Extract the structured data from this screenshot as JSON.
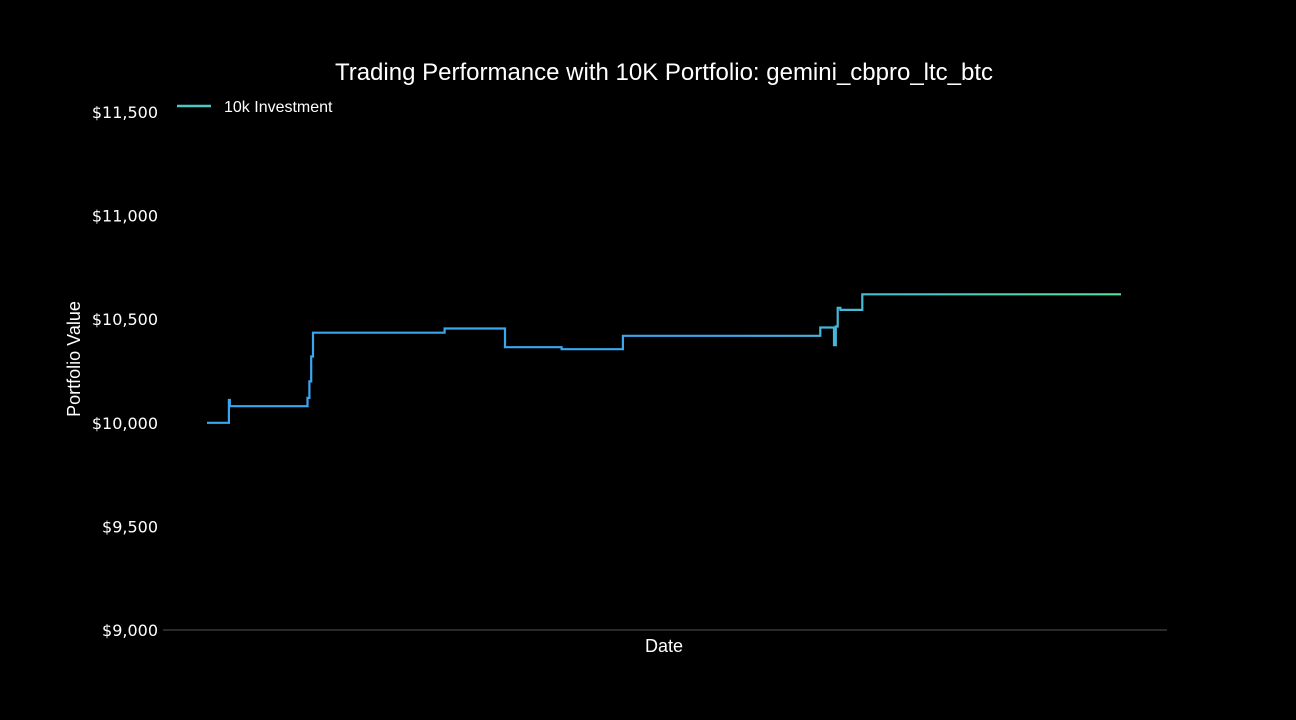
{
  "chart_data": {
    "type": "line",
    "title": "Trading Performance with 10K Portfolio: gemini_cbpro_ltc_btc",
    "xlabel": "Date",
    "ylabel": "Portfolio Value",
    "ylim": [
      9000,
      11600
    ],
    "yticks": [
      9000,
      9500,
      10000,
      10500,
      11000,
      11500
    ],
    "ytick_labels": [
      "$9,000",
      "$9,500",
      "$10,000",
      "$10,500",
      "$11,000",
      "$11,500"
    ],
    "xlim": [
      0,
      100
    ],
    "x_tick_labels_shown": false,
    "grid": false,
    "legend": {
      "position": "top-left",
      "entries": [
        "10k Investment"
      ]
    },
    "colors": {
      "background": "#000000",
      "text": "#ffffff",
      "axis": "#555555",
      "line_start": "#3aa6f0",
      "line_end": "#5ee09a",
      "legend_line": "#4cc7c4"
    },
    "series": [
      {
        "name": "10k Investment",
        "step": true,
        "x": [
          0,
          2.4,
          2.4,
          2.5,
          2.5,
          11,
          11,
          11.2,
          11.2,
          11.4,
          11.4,
          11.6,
          11.6,
          26,
          26,
          32.6,
          32.6,
          38.8,
          38.8,
          45.5,
          45.5,
          67.1,
          67.1,
          68.6,
          68.6,
          68.8,
          68.8,
          69,
          69,
          69.3,
          69.3,
          71.7,
          71.7,
          71.8,
          71.8,
          100
        ],
        "y": [
          10000,
          10000,
          10110,
          10110,
          10080,
          10080,
          10120,
          10120,
          10200,
          10200,
          10320,
          10320,
          10435,
          10435,
          10455,
          10455,
          10365,
          10365,
          10355,
          10355,
          10420,
          10420,
          10460,
          10460,
          10375,
          10375,
          10465,
          10465,
          10555,
          10555,
          10545,
          10545,
          10620,
          10620,
          10620,
          10620
        ]
      }
    ]
  }
}
